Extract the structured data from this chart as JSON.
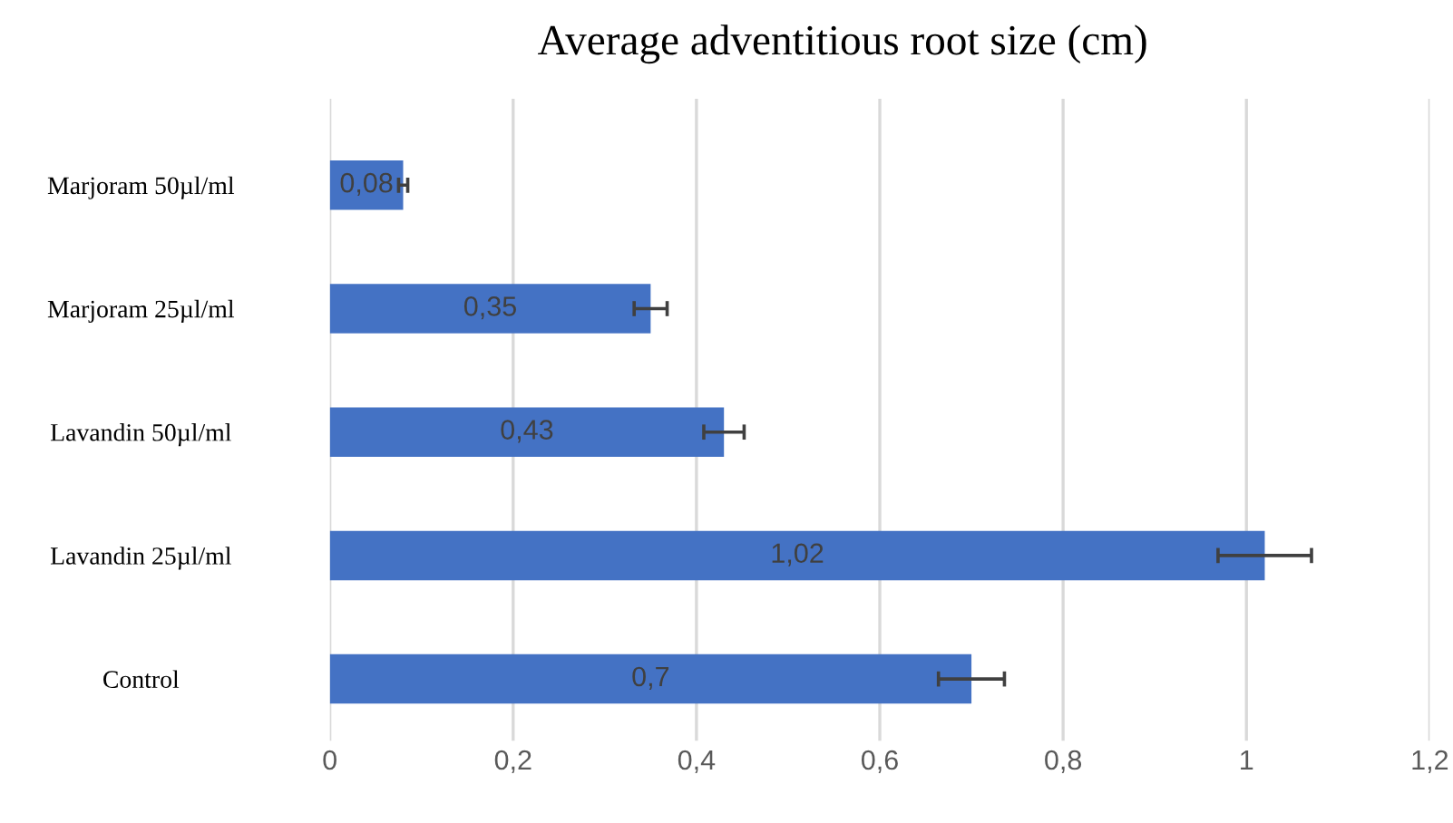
{
  "chart_data": {
    "type": "bar",
    "orientation": "horizontal",
    "title": "Average adventitious root size (cm)",
    "categories": [
      "Marjoram 50µl/ml",
      "Marjoram 25µl/ml",
      "Lavandin 50µl/ml",
      "Lavandin 25µl/ml",
      "Control"
    ],
    "values": [
      0.08,
      0.35,
      0.43,
      1.02,
      0.7
    ],
    "errors": [
      0.005,
      0.018,
      0.022,
      0.051,
      0.036
    ],
    "value_labels": [
      "0,08",
      "0,35",
      "0,43",
      "1,02",
      "0,7"
    ],
    "color": "#4472c4",
    "xlim": [
      0,
      1.2
    ],
    "xticks": [
      0,
      {
        "value": 0.2,
        "label": "0,2"
      },
      {
        "value": 0.4,
        "label": "0,4"
      },
      {
        "value": 0.6,
        "label": "0,6"
      },
      {
        "value": 0.8,
        "label": "0,8"
      },
      1,
      {
        "value": 1.2,
        "label": "1,2"
      }
    ],
    "grid": "x"
  }
}
